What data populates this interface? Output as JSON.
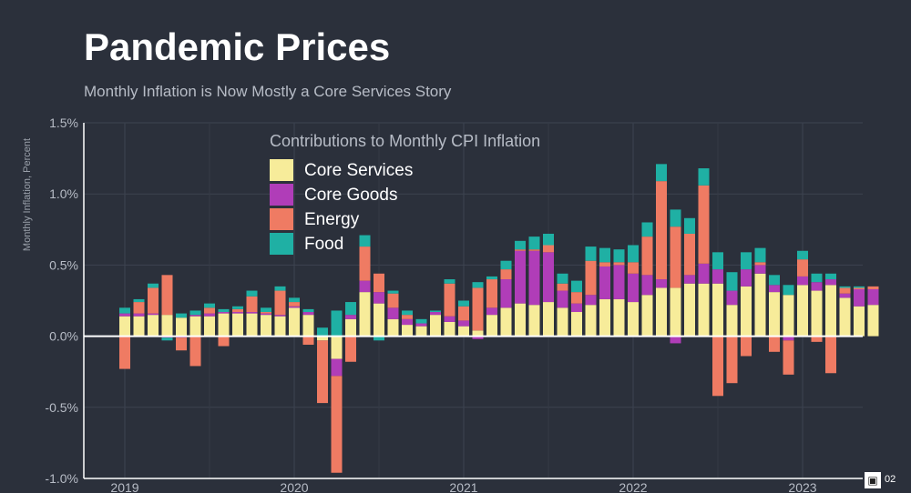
{
  "title": "Pandemic Prices",
  "subtitle": "Monthly Inflation is Now Mostly a Core Services Story",
  "corner_badge": {
    "icon": "qr-icon",
    "label": "02"
  },
  "chart_data": {
    "type": "bar",
    "stacked": true,
    "legend_title": "Contributions to Monthly CPI Inflation",
    "legend_position": "top-center",
    "ylabel": "Monthly Inflation, Percent",
    "xlabel": "",
    "ylim": [
      -1.0,
      1.5
    ],
    "yticks": [
      -1.0,
      -0.5,
      0.0,
      0.5,
      1.0,
      1.5
    ],
    "ytick_labels": [
      "-1.0%",
      "-0.5%",
      "0.0%",
      "0.5%",
      "1.0%",
      "1.5%"
    ],
    "xticks": [
      {
        "label": "2019",
        "index": 0
      },
      {
        "label": "2020",
        "index": 12
      },
      {
        "label": "2021",
        "index": 24
      },
      {
        "label": "2022",
        "index": 36
      },
      {
        "label": "2023",
        "index": 48
      }
    ],
    "grid": true,
    "categories": [
      "Jan 2019",
      "Feb 2019",
      "Mar 2019",
      "Apr 2019",
      "May 2019",
      "Jun 2019",
      "Jul 2019",
      "Aug 2019",
      "Sep 2019",
      "Oct 2019",
      "Nov 2019",
      "Dec 2019",
      "Jan 2020",
      "Feb 2020",
      "Mar 2020",
      "Apr 2020",
      "May 2020",
      "Jun 2020",
      "Jul 2020",
      "Aug 2020",
      "Sep 2020",
      "Oct 2020",
      "Nov 2020",
      "Dec 2020",
      "Jan 2021",
      "Feb 2021",
      "Mar 2021",
      "Apr 2021",
      "May 2021",
      "Jun 2021",
      "Jul 2021",
      "Aug 2021",
      "Sep 2021",
      "Oct 2021",
      "Nov 2021",
      "Dec 2021",
      "Jan 2022",
      "Feb 2022",
      "Mar 2022",
      "Apr 2022",
      "May 2022",
      "Jun 2022",
      "Jul 2022",
      "Aug 2022",
      "Sep 2022",
      "Oct 2022",
      "Nov 2022",
      "Dec 2022",
      "Jan 2023",
      "Feb 2023",
      "Mar 2023",
      "Apr 2023",
      "May 2023",
      "Jun 2023"
    ],
    "series": [
      {
        "name": "Core Services",
        "color": "#f7ec9a",
        "values": [
          0.14,
          0.14,
          0.15,
          0.15,
          0.13,
          0.14,
          0.14,
          0.16,
          0.16,
          0.16,
          0.15,
          0.14,
          0.2,
          0.15,
          -0.03,
          -0.16,
          0.12,
          0.31,
          0.23,
          0.12,
          0.08,
          0.07,
          0.15,
          0.1,
          0.07,
          0.04,
          0.15,
          0.2,
          0.23,
          0.22,
          0.24,
          0.2,
          0.17,
          0.22,
          0.26,
          0.26,
          0.24,
          0.29,
          0.34,
          0.34,
          0.37,
          0.37,
          0.37,
          0.22,
          0.35,
          0.44,
          0.31,
          0.29,
          0.36,
          0.32,
          0.36,
          0.27,
          0.21,
          0.22
        ]
      },
      {
        "name": "Core Goods",
        "color": "#b03db8",
        "values": [
          0.02,
          0.02,
          0.01,
          -0.01,
          -0.01,
          0.01,
          0.02,
          0.01,
          0.01,
          0.01,
          0.01,
          0.01,
          0.01,
          0.02,
          0.0,
          -0.12,
          0.03,
          0.08,
          0.08,
          0.08,
          0.04,
          0.02,
          0.02,
          0.04,
          0.04,
          -0.02,
          0.05,
          0.2,
          0.37,
          0.38,
          0.35,
          0.12,
          0.06,
          0.07,
          0.23,
          0.24,
          0.2,
          0.14,
          0.06,
          -0.05,
          0.06,
          0.14,
          0.1,
          0.1,
          0.12,
          0.06,
          0.05,
          -0.03,
          0.06,
          0.06,
          0.04,
          0.03,
          0.12,
          0.11
        ]
      },
      {
        "name": "Energy",
        "color": "#ef7b63",
        "values": [
          -0.23,
          0.08,
          0.18,
          0.28,
          -0.09,
          -0.21,
          0.04,
          -0.07,
          0.02,
          0.11,
          0.01,
          0.17,
          0.03,
          -0.06,
          -0.44,
          -0.68,
          -0.18,
          0.24,
          0.13,
          0.1,
          0.03,
          0.0,
          0.0,
          0.23,
          0.1,
          0.3,
          0.2,
          0.07,
          0.01,
          0.01,
          0.05,
          0.05,
          0.08,
          0.24,
          0.03,
          0.02,
          0.08,
          0.27,
          0.69,
          0.43,
          0.29,
          0.55,
          -0.42,
          -0.33,
          -0.14,
          0.02,
          -0.11,
          -0.24,
          0.12,
          -0.04,
          -0.26,
          0.04,
          0.01,
          0.02
        ]
      },
      {
        "name": "Food",
        "color": "#1fb0a4",
        "values": [
          0.04,
          0.02,
          0.03,
          -0.02,
          0.03,
          0.03,
          0.03,
          0.02,
          0.02,
          0.04,
          0.03,
          0.03,
          0.03,
          0.02,
          0.06,
          0.18,
          0.09,
          0.08,
          -0.03,
          0.02,
          0.03,
          0.03,
          0.01,
          0.03,
          0.04,
          0.04,
          0.02,
          0.06,
          0.06,
          0.09,
          0.08,
          0.07,
          0.08,
          0.1,
          0.1,
          0.09,
          0.12,
          0.1,
          0.12,
          0.12,
          0.11,
          0.12,
          0.12,
          0.13,
          0.12,
          0.1,
          0.07,
          0.07,
          0.06,
          0.06,
          0.04,
          0.01,
          0.01,
          0.0
        ]
      }
    ]
  }
}
